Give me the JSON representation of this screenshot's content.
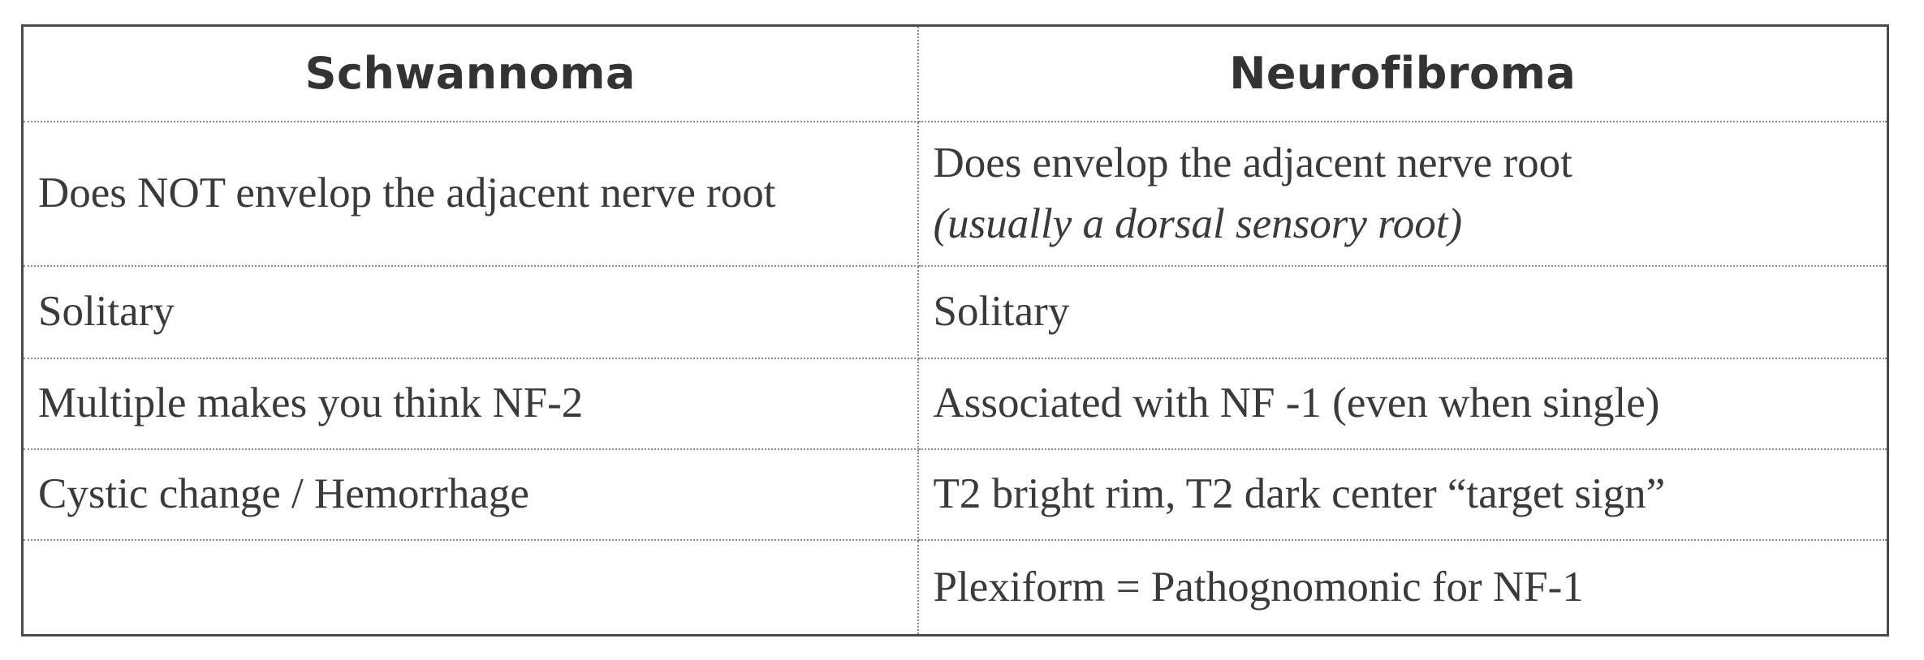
{
  "table": {
    "headers": [
      "Schwannoma",
      "Neurofibroma"
    ],
    "rows": [
      {
        "schwannoma": "Does NOT envelop the adjacent nerve root",
        "neurofibroma": "Does envelop the adjacent nerve root",
        "neurofibroma_note": "(usually a dorsal sensory root)"
      },
      {
        "schwannoma": "Solitary",
        "neurofibroma": "Solitary"
      },
      {
        "schwannoma": "Multiple makes you think NF-2",
        "neurofibroma": "Associated with NF -1 (even when single)"
      },
      {
        "schwannoma": "Cystic change / Hemorrhage",
        "neurofibroma": "T2 bright rim, T2 dark center “target sign”"
      },
      {
        "schwannoma": "",
        "neurofibroma": "Plexiform = Pathognomonic for NF-1"
      }
    ]
  }
}
